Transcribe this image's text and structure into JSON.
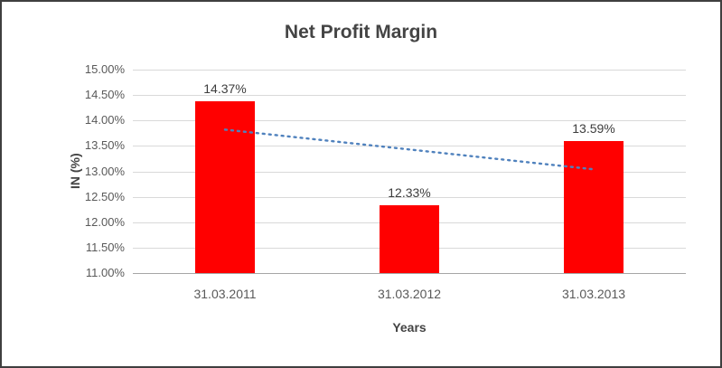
{
  "chart": {
    "title": "Net Profit Margin",
    "y_axis_title": "IN (%)",
    "x_axis_title": "Years"
  },
  "chart_data": {
    "type": "bar",
    "title": "Net Profit Margin",
    "xlabel": "Years",
    "ylabel": "IN (%)",
    "categories": [
      "31.03.2011",
      "31.03.2012",
      "31.03.2013"
    ],
    "values": [
      14.37,
      12.33,
      13.59
    ],
    "data_labels": [
      "14.37%",
      "12.33%",
      "13.59%"
    ],
    "ylim": [
      11.0,
      15.0
    ],
    "ytick_step": 0.5,
    "ytick_labels": [
      "11.00%",
      "11.50%",
      "12.00%",
      "12.50%",
      "13.00%",
      "13.50%",
      "14.00%",
      "14.50%",
      "15.00%"
    ],
    "grid": true,
    "legend": "none",
    "bar_color": "#ff0000",
    "trendline": {
      "style": "dotted",
      "color": "#4f81bd",
      "start_value": 13.82,
      "end_value": 13.04
    }
  }
}
